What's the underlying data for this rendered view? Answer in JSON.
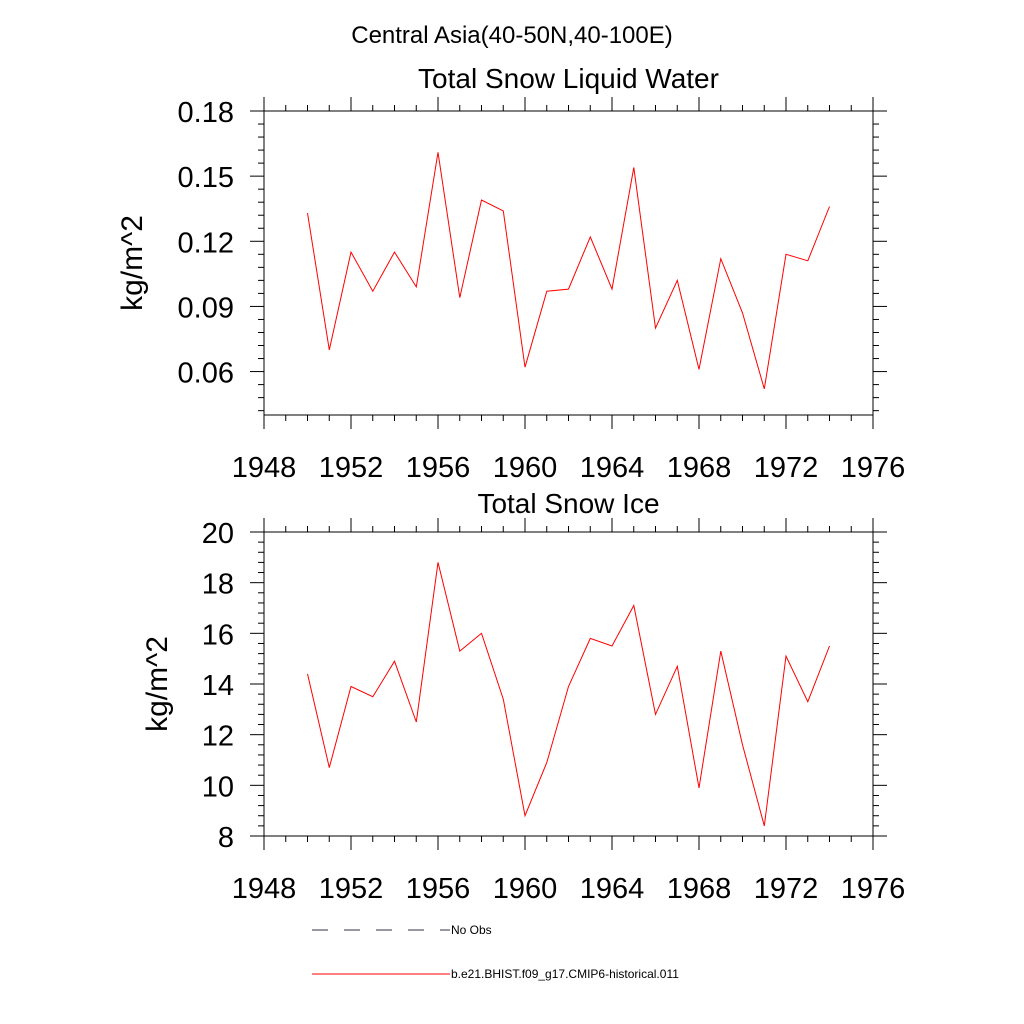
{
  "main_title": "Central Asia(40-50N,40-100E)",
  "legend": {
    "items": [
      {
        "label": "No Obs",
        "color": "#000000",
        "style": "dashed"
      },
      {
        "label": "b.e21.BHIST.f09_g17.CMIP6-historical.011",
        "color": "#ff0000",
        "style": "solid"
      }
    ]
  },
  "chart_data": [
    {
      "type": "line",
      "title": "Total Snow Liquid Water",
      "ylabel": "kg/m^2",
      "xlabel": "",
      "xlim": [
        1948,
        1976
      ],
      "ylim": [
        0.04,
        0.18
      ],
      "xticks": [
        1948,
        1952,
        1956,
        1960,
        1964,
        1968,
        1972,
        1976
      ],
      "xtick_labels": [
        "1948",
        "1952",
        "1956",
        "1960",
        "1964",
        "1968",
        "1972",
        "1976"
      ],
      "yticks": [
        0.06,
        0.09,
        0.12,
        0.15,
        0.18
      ],
      "ytick_labels": [
        "0.06",
        "0.09",
        "0.12",
        "0.15",
        "0.18"
      ],
      "grid": false,
      "series": [
        {
          "name": "b.e21.BHIST.f09_g17.CMIP6-historical.011",
          "color": "#ff0000",
          "x": [
            1950,
            1951,
            1952,
            1953,
            1954,
            1955,
            1956,
            1957,
            1958,
            1959,
            1960,
            1961,
            1962,
            1963,
            1964,
            1965,
            1966,
            1967,
            1968,
            1969,
            1970,
            1971,
            1972,
            1973,
            1974
          ],
          "y": [
            0.133,
            0.07,
            0.115,
            0.097,
            0.115,
            0.099,
            0.161,
            0.094,
            0.139,
            0.134,
            0.062,
            0.097,
            0.098,
            0.122,
            0.098,
            0.154,
            0.08,
            0.102,
            0.061,
            0.112,
            0.087,
            0.052,
            0.114,
            0.111,
            0.136
          ]
        }
      ]
    },
    {
      "type": "line",
      "title": "Total Snow Ice",
      "ylabel": "kg/m^2",
      "xlabel": "",
      "xlim": [
        1948,
        1976
      ],
      "ylim": [
        8,
        20
      ],
      "xticks": [
        1948,
        1952,
        1956,
        1960,
        1964,
        1968,
        1972,
        1976
      ],
      "xtick_labels": [
        "1948",
        "1952",
        "1956",
        "1960",
        "1964",
        "1968",
        "1972",
        "1976"
      ],
      "yticks": [
        8,
        10,
        12,
        14,
        16,
        18,
        20
      ],
      "ytick_labels": [
        "8",
        "10",
        "12",
        "14",
        "16",
        "18",
        "20"
      ],
      "grid": false,
      "series": [
        {
          "name": "b.e21.BHIST.f09_g17.CMIP6-historical.011",
          "color": "#ff0000",
          "x": [
            1950,
            1951,
            1952,
            1953,
            1954,
            1955,
            1956,
            1957,
            1958,
            1959,
            1960,
            1961,
            1962,
            1963,
            1964,
            1965,
            1966,
            1967,
            1968,
            1969,
            1970,
            1971,
            1972,
            1973,
            1974
          ],
          "y": [
            14.4,
            10.7,
            13.9,
            13.5,
            14.9,
            12.5,
            18.8,
            15.3,
            16.0,
            13.4,
            8.8,
            10.9,
            13.9,
            15.8,
            15.5,
            17.1,
            12.8,
            14.7,
            9.9,
            15.3,
            11.6,
            8.4,
            15.1,
            13.3,
            15.5
          ]
        }
      ]
    }
  ]
}
